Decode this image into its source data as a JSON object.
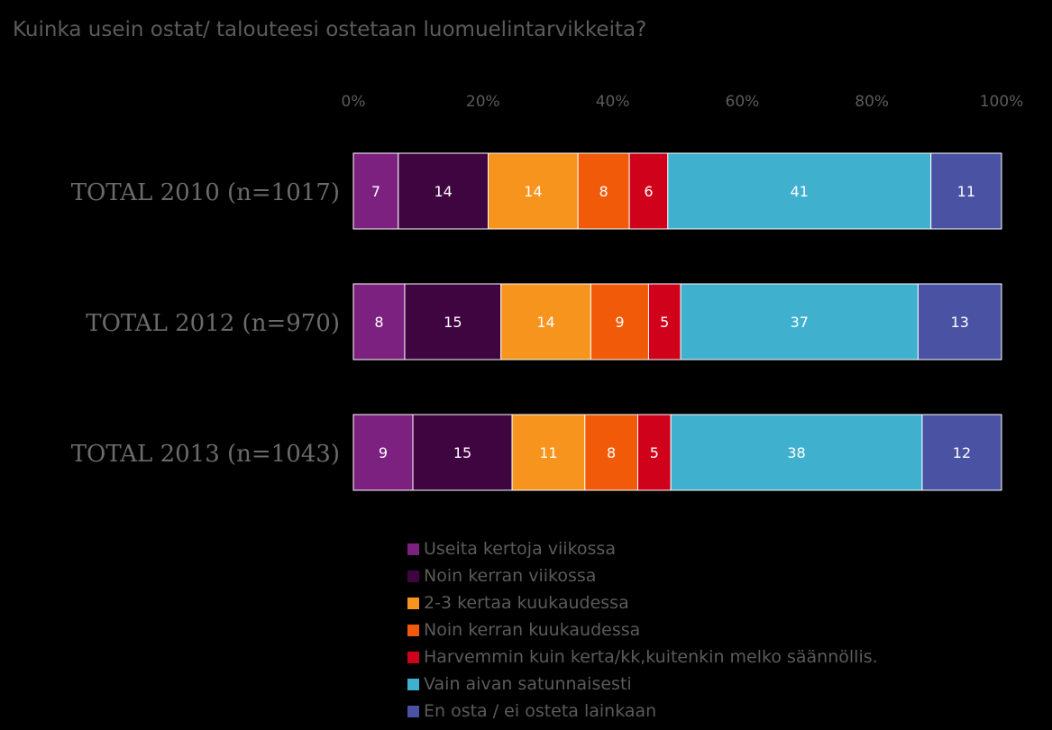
{
  "chart_data": {
    "type": "bar",
    "orientation": "horizontal",
    "stacked": true,
    "title": "Kuinka usein ostat/ talouteesi ostetaan luomuelintarvikkeita?",
    "xlim": [
      0,
      100
    ],
    "x_ticks": [
      "0%",
      "20%",
      "40%",
      "60%",
      "80%",
      "100%"
    ],
    "categories": [
      "TOTAL 2010 (n=1017)",
      "TOTAL 2012 (n=970)",
      "TOTAL 2013 (n=1043)"
    ],
    "legend_position": "bottom",
    "series": [
      {
        "name": "Useita kertoja viikossa",
        "color": "#7d2181",
        "values": [
          7,
          8,
          9
        ]
      },
      {
        "name": "Noin kerran viikossa",
        "color": "#3f0540",
        "values": [
          14,
          15,
          15
        ]
      },
      {
        "name": "2-3 kertaa kuukaudessa",
        "color": "#f7941e",
        "values": [
          14,
          14,
          11
        ]
      },
      {
        "name": "Noin kerran kuukaudessa",
        "color": "#f15a09",
        "values": [
          8,
          9,
          8
        ]
      },
      {
        "name": "Harvemmin kuin kerta/kk,kuitenkin melko säännöllis.",
        "color": "#d0021b",
        "values": [
          6,
          5,
          5
        ]
      },
      {
        "name": "Vain aivan satunnaisesti",
        "color": "#40b0cf",
        "values": [
          41,
          37,
          38
        ]
      },
      {
        "name": "En osta / ei osteta lainkaan",
        "color": "#4a52a3",
        "values": [
          11,
          13,
          12
        ]
      }
    ]
  }
}
